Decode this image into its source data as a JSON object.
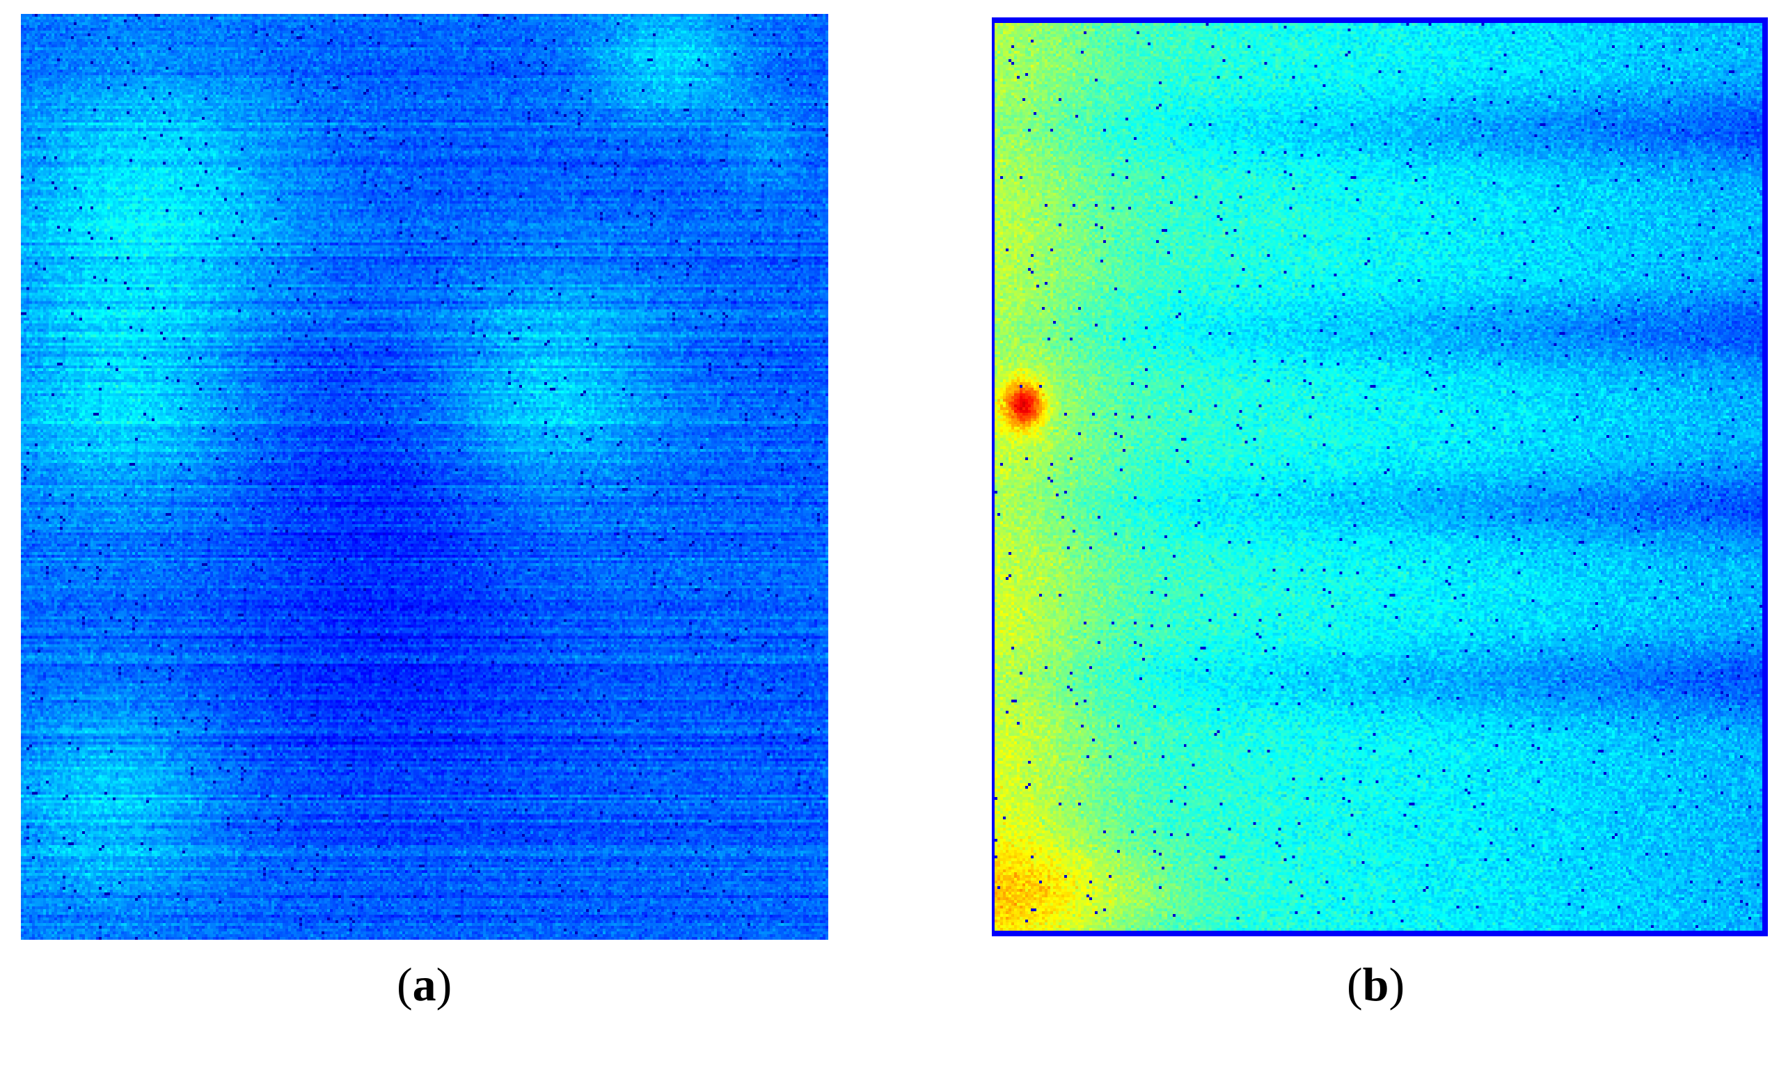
{
  "panels": [
    {
      "id": "a",
      "label": "a",
      "description_colormap": "jet",
      "dominant_color": "#1a5cf0"
    },
    {
      "id": "b",
      "label": "b",
      "description_colormap": "jet",
      "dominant_color": "#3ab8f0"
    }
  ],
  "colors": {
    "background": "#ffffff",
    "deep_blue": "#0a1f9c",
    "blue": "#1a5cf0",
    "cyan": "#2fd4f0",
    "yellow": "#f5e62a",
    "orange": "#f28a1e"
  }
}
